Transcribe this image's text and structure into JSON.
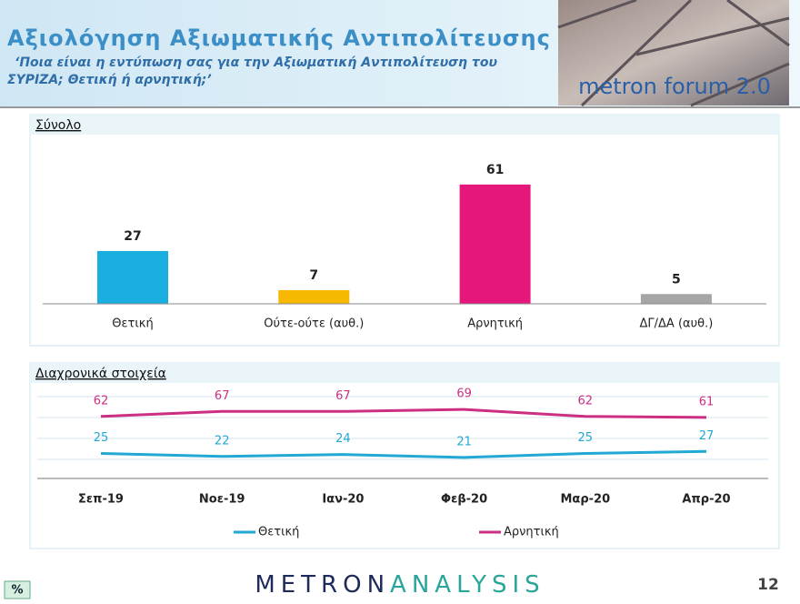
{
  "header": {
    "title": "Αξιολόγηση Αξιωματικής Αντιπολίτευσης",
    "subtitle_line1": "‘Ποια είναι η εντύπωση σας για την Αξιωματική Αντιπολίτευση του",
    "subtitle_line2": "ΣΥΡΙΖΑ; Θετική ή αρνητική;’",
    "logo": "metron forum 2.0"
  },
  "footer": {
    "unit": "%",
    "brand_part1": "METRON",
    "brand_part2": "ANALYSIS",
    "page": "12"
  },
  "chart_data": [
    {
      "type": "bar",
      "title": "Σύνολο",
      "categories": [
        "Θετική",
        "Ούτε-ούτε (αυθ.)",
        "Αρνητική",
        "ΔΓ/ΔΑ (αυθ.)"
      ],
      "values": [
        27,
        7,
        61,
        5
      ],
      "colors": [
        "#1aaee0",
        "#f6b800",
        "#e5177b",
        "#a6a6a6"
      ]
    },
    {
      "type": "line",
      "title": "Διαχρονικά στοιχεία",
      "categories": [
        "Σεπ-19",
        "Νοε-19",
        "Ιαν-20",
        "Φεβ-20",
        "Μαρ-20",
        "Απρ-20"
      ],
      "series": [
        {
          "name": "Θετική",
          "color": "#22a8d4",
          "values": [
            25,
            22,
            24,
            21,
            25,
            27
          ]
        },
        {
          "name": "Αρνητική",
          "color": "#cc2e82",
          "values": [
            62,
            67,
            67,
            69,
            62,
            61
          ]
        }
      ]
    }
  ]
}
